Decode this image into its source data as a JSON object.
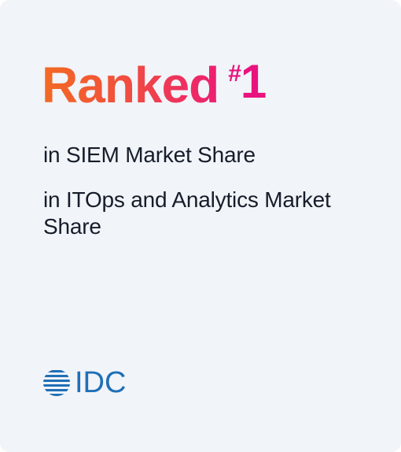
{
  "headline": {
    "word": "Ranked",
    "hash": "#",
    "number": "1"
  },
  "lines": [
    "in SIEM Market Share",
    "in ITOps and Analytics Market Share"
  ],
  "logo": {
    "text": "IDC",
    "icon": "idc-globe-icon",
    "color": "#1f6fb6"
  },
  "colors": {
    "card_background": "#f1f4f8",
    "gradient_start": "#f26a22",
    "gradient_end": "#ec1e73",
    "text": "#161d2a"
  }
}
